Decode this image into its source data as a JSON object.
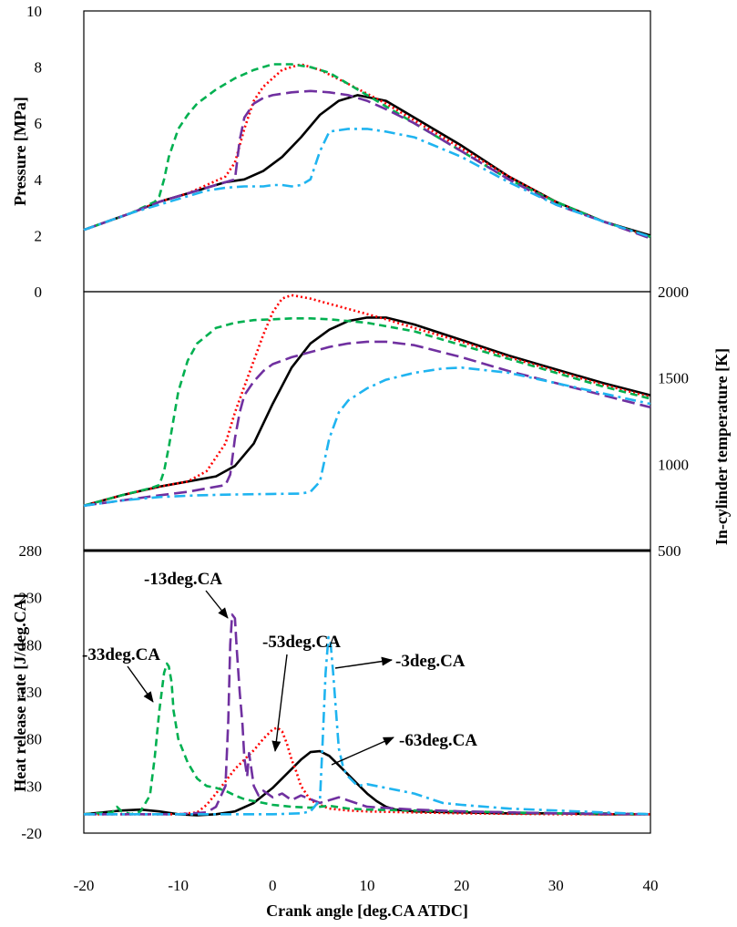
{
  "chart_data": [
    {
      "type": "line",
      "panel": "top",
      "ylabel": "Pressure [MPa]",
      "xlabel": "",
      "xlim": [
        -20,
        40
      ],
      "ylim": [
        0,
        10
      ],
      "yticks": [
        "0",
        "2",
        "4",
        "6",
        "8",
        "10"
      ],
      "series": [
        {
          "name": "-63deg.CA",
          "color": "#000000",
          "dash": "solid",
          "x": [
            -20,
            -15,
            -12,
            -9,
            -7,
            -5,
            -3,
            -1,
            1,
            3,
            5,
            7,
            9,
            12,
            15,
            20,
            25,
            30,
            35,
            40
          ],
          "y": [
            2.2,
            2.8,
            3.2,
            3.5,
            3.7,
            3.9,
            4.0,
            4.3,
            4.8,
            5.5,
            6.3,
            6.8,
            7.0,
            6.8,
            6.2,
            5.2,
            4.1,
            3.2,
            2.5,
            2.0
          ]
        },
        {
          "name": "-53deg.CA",
          "color": "#ff0000",
          "dash": "dot",
          "x": [
            -20,
            -15,
            -12,
            -9,
            -7,
            -5,
            -4,
            -3,
            -2,
            -1,
            0,
            1,
            3,
            5,
            8,
            12,
            15,
            20,
            25,
            30,
            35,
            40
          ],
          "y": [
            2.2,
            2.8,
            3.2,
            3.5,
            3.8,
            4.1,
            4.6,
            5.8,
            6.8,
            7.3,
            7.6,
            7.9,
            8.1,
            7.9,
            7.4,
            6.7,
            6.1,
            5.1,
            4.1,
            3.2,
            2.5,
            1.95
          ]
        },
        {
          "name": "-33deg.CA",
          "color": "#00b050",
          "dash": "dash",
          "x": [
            -20,
            -15,
            -12.5,
            -12,
            -11.5,
            -11,
            -10,
            -9,
            -8,
            -6,
            -4,
            -2,
            0,
            2,
            4,
            6,
            8,
            10,
            12,
            15,
            20,
            25,
            30,
            35,
            40
          ],
          "y": [
            2.2,
            2.8,
            3.2,
            3.4,
            4.0,
            4.8,
            5.8,
            6.3,
            6.7,
            7.2,
            7.6,
            7.9,
            8.1,
            8.1,
            8.0,
            7.8,
            7.4,
            7.0,
            6.6,
            6.0,
            5.0,
            4.0,
            3.2,
            2.5,
            1.95
          ]
        },
        {
          "name": "-13deg.CA",
          "color": "#7030a0",
          "dash": "longdash",
          "x": [
            -20,
            -15,
            -12,
            -9,
            -7,
            -5,
            -4,
            -3.5,
            -3,
            -2,
            -1,
            0,
            2,
            4,
            6,
            8,
            10,
            12,
            15,
            20,
            25,
            30,
            35,
            40
          ],
          "y": [
            2.2,
            2.8,
            3.2,
            3.5,
            3.7,
            3.9,
            4.0,
            5.4,
            6.2,
            6.7,
            6.9,
            7.0,
            7.1,
            7.15,
            7.1,
            7.0,
            6.8,
            6.5,
            6.0,
            5.0,
            4.0,
            3.1,
            2.5,
            1.9
          ]
        },
        {
          "name": "-3deg.CA",
          "color": "#1fb4f0",
          "dash": "dashdot",
          "x": [
            -20,
            -15,
            -12,
            -9,
            -7,
            -5,
            -3,
            -1,
            0,
            1,
            2,
            3,
            4,
            5,
            6,
            8,
            10,
            12,
            15,
            20,
            25,
            30,
            35,
            40
          ],
          "y": [
            2.2,
            2.8,
            3.1,
            3.4,
            3.6,
            3.7,
            3.75,
            3.75,
            3.8,
            3.8,
            3.75,
            3.8,
            4.0,
            5.0,
            5.7,
            5.8,
            5.8,
            5.7,
            5.5,
            4.8,
            3.9,
            3.1,
            2.5,
            1.95
          ]
        }
      ]
    },
    {
      "type": "line",
      "panel": "middle",
      "ylabel": "In-cylinder temperature [K]",
      "xlabel": "",
      "xlim": [
        -20,
        40
      ],
      "ylim": [
        500,
        2000
      ],
      "yticks": [
        "500",
        "1000",
        "1500",
        "2000"
      ],
      "series": [
        {
          "name": "-63deg.CA",
          "color": "#000000",
          "dash": "solid",
          "x": [
            -20,
            -16,
            -12,
            -9,
            -6,
            -4,
            -2,
            0,
            2,
            4,
            6,
            8,
            10,
            12,
            15,
            20,
            25,
            30,
            35,
            40
          ],
          "y": [
            760,
            820,
            870,
            900,
            930,
            990,
            1120,
            1350,
            1560,
            1700,
            1780,
            1830,
            1850,
            1850,
            1810,
            1720,
            1630,
            1550,
            1470,
            1400
          ]
        },
        {
          "name": "-53deg.CA",
          "color": "#ff0000",
          "dash": "dot",
          "x": [
            -20,
            -16,
            -12,
            -9,
            -7,
            -5,
            -4,
            -3,
            -2,
            -1,
            0,
            1,
            2,
            4,
            6,
            8,
            10,
            12,
            15,
            20,
            25,
            30,
            35,
            40
          ],
          "y": [
            760,
            820,
            870,
            900,
            960,
            1120,
            1300,
            1450,
            1600,
            1750,
            1880,
            1960,
            1980,
            1960,
            1930,
            1900,
            1870,
            1840,
            1790,
            1710,
            1620,
            1540,
            1460,
            1390
          ]
        },
        {
          "name": "-33deg.CA",
          "color": "#00b050",
          "dash": "dash",
          "x": [
            -20,
            -16,
            -13,
            -12,
            -11.5,
            -11,
            -10,
            -9,
            -8,
            -6,
            -4,
            -2,
            0,
            2,
            4,
            6,
            8,
            10,
            12,
            15,
            20,
            25,
            30,
            35,
            40
          ],
          "y": [
            760,
            820,
            860,
            880,
            960,
            1100,
            1420,
            1600,
            1700,
            1790,
            1820,
            1835,
            1840,
            1845,
            1845,
            1840,
            1830,
            1820,
            1800,
            1770,
            1690,
            1610,
            1530,
            1450,
            1380
          ]
        },
        {
          "name": "-13deg.CA",
          "color": "#7030a0",
          "dash": "longdash",
          "x": [
            -20,
            -16,
            -12,
            -9,
            -7,
            -5,
            -4.5,
            -4,
            -3.5,
            -3,
            -2,
            -1,
            0,
            2,
            4,
            6,
            8,
            10,
            12,
            15,
            20,
            25,
            30,
            35,
            40
          ],
          "y": [
            760,
            790,
            820,
            840,
            860,
            880,
            940,
            1150,
            1300,
            1400,
            1480,
            1540,
            1580,
            1620,
            1650,
            1680,
            1700,
            1710,
            1710,
            1690,
            1620,
            1540,
            1470,
            1400,
            1330
          ]
        },
        {
          "name": "-3deg.CA",
          "color": "#1fb4f0",
          "dash": "dashdot",
          "x": [
            -20,
            -16,
            -12,
            -8,
            -4,
            0,
            3,
            4,
            5,
            6,
            7,
            8,
            10,
            12,
            15,
            18,
            20,
            25,
            30,
            35,
            40
          ],
          "y": [
            760,
            790,
            810,
            820,
            825,
            828,
            830,
            840,
            900,
            1150,
            1300,
            1370,
            1440,
            1490,
            1530,
            1555,
            1560,
            1530,
            1470,
            1410,
            1350
          ]
        }
      ]
    },
    {
      "type": "line",
      "panel": "bottom",
      "ylabel": "Heat release rate [J/deg.CA]",
      "xlabel": "Crank angle [deg.CA ATDC]",
      "xlim": [
        -20,
        40
      ],
      "ylim": [
        -20,
        280
      ],
      "yticks": [
        "-20",
        "30",
        "80",
        "130",
        "180",
        "230",
        "280"
      ],
      "xticks": [
        "-20",
        "-10",
        "0",
        "10",
        "20",
        "30",
        "40"
      ],
      "series": [
        {
          "name": "-63deg.CA",
          "color": "#000000",
          "dash": "solid",
          "x": [
            -20,
            -18,
            -16,
            -14,
            -12,
            -10,
            -8,
            -6,
            -4,
            -2,
            0,
            1,
            2,
            3,
            4,
            5,
            6,
            7,
            8,
            9,
            10,
            11,
            12,
            13,
            15,
            20,
            25,
            30,
            35,
            40
          ],
          "y": [
            0,
            2,
            4,
            5,
            3,
            0,
            -1,
            0,
            3,
            12,
            28,
            38,
            48,
            58,
            66,
            67,
            62,
            52,
            42,
            32,
            22,
            14,
            8,
            5,
            3,
            2,
            1,
            1,
            0,
            0
          ]
        },
        {
          "name": "-53deg.CA",
          "color": "#ff0000",
          "dash": "dot",
          "x": [
            -20,
            -15,
            -10,
            -8,
            -7,
            -6,
            -5,
            -4,
            -3,
            -2,
            -1,
            0,
            0.5,
            1,
            1.5,
            2,
            2.5,
            3,
            4,
            5,
            6,
            8,
            10,
            15,
            20,
            30,
            40
          ],
          "y": [
            0,
            0,
            0,
            2,
            10,
            22,
            35,
            48,
            58,
            68,
            80,
            90,
            92,
            88,
            75,
            58,
            45,
            30,
            15,
            10,
            6,
            4,
            3,
            2,
            1,
            0,
            0
          ]
        },
        {
          "name": "-33deg.CA",
          "color": "#00b050",
          "dash": "dash",
          "x": [
            -20,
            -17,
            -16.5,
            -16,
            -15,
            -14,
            -13,
            -12.5,
            -12,
            -11.5,
            -11.2,
            -11,
            -10.7,
            -10.5,
            -10,
            -9,
            -8,
            -7,
            -6,
            -5,
            -4,
            -3,
            -2,
            -1,
            0,
            2,
            4,
            6,
            8,
            10,
            15,
            20,
            25,
            30,
            35,
            40
          ],
          "y": [
            0,
            2,
            8,
            3,
            0,
            3,
            20,
            60,
            110,
            150,
            160,
            157,
            140,
            110,
            80,
            55,
            38,
            30,
            28,
            25,
            20,
            16,
            14,
            12,
            10,
            8,
            7,
            9,
            6,
            5,
            4,
            3,
            2,
            1,
            1,
            0
          ]
        },
        {
          "name": "-13deg.CA",
          "color": "#7030a0",
          "dash": "longdash",
          "x": [
            -20,
            -15,
            -10,
            -7,
            -6,
            -5,
            -4.7,
            -4.5,
            -4.3,
            -4,
            -3.8,
            -3.5,
            -3.2,
            -3,
            -2.7,
            -2.5,
            -2,
            -1.5,
            -1,
            0,
            1,
            2,
            3,
            5,
            7,
            10,
            15,
            20,
            30,
            40
          ],
          "y": [
            0,
            0,
            0,
            2,
            8,
            30,
            100,
            180,
            212,
            208,
            175,
            130,
            95,
            60,
            40,
            65,
            30,
            20,
            25,
            18,
            22,
            15,
            20,
            12,
            18,
            8,
            5,
            3,
            1,
            0
          ]
        },
        {
          "name": "-3deg.CA",
          "color": "#1fb4f0",
          "dash": "dashdot",
          "x": [
            -20,
            -10,
            0,
            3,
            4,
            5,
            5.3,
            5.6,
            5.9,
            6.1,
            6.4,
            6.7,
            7,
            7.5,
            8,
            9,
            10,
            12,
            15,
            18,
            20,
            25,
            30,
            35,
            40
          ],
          "y": [
            0,
            0,
            0,
            1,
            3,
            15,
            80,
            150,
            188,
            185,
            150,
            110,
            70,
            48,
            40,
            30,
            32,
            28,
            22,
            12,
            10,
            6,
            4,
            2,
            0
          ]
        }
      ]
    }
  ],
  "annotations": [
    {
      "label": "-33deg.CA",
      "arrow_to_x": -11.5,
      "arrow_to_y": 158
    },
    {
      "label": "-13deg.CA",
      "arrow_to_x": -4.4,
      "arrow_to_y": 205
    },
    {
      "label": "-53deg.CA",
      "arrow_to_x": 0.5,
      "arrow_to_y": 91
    },
    {
      "label": "-3deg.CA",
      "arrow_to_x": 6.1,
      "arrow_to_y": 180
    },
    {
      "label": "-63deg.CA",
      "arrow_to_x": 6.0,
      "arrow_to_y": 60
    }
  ]
}
